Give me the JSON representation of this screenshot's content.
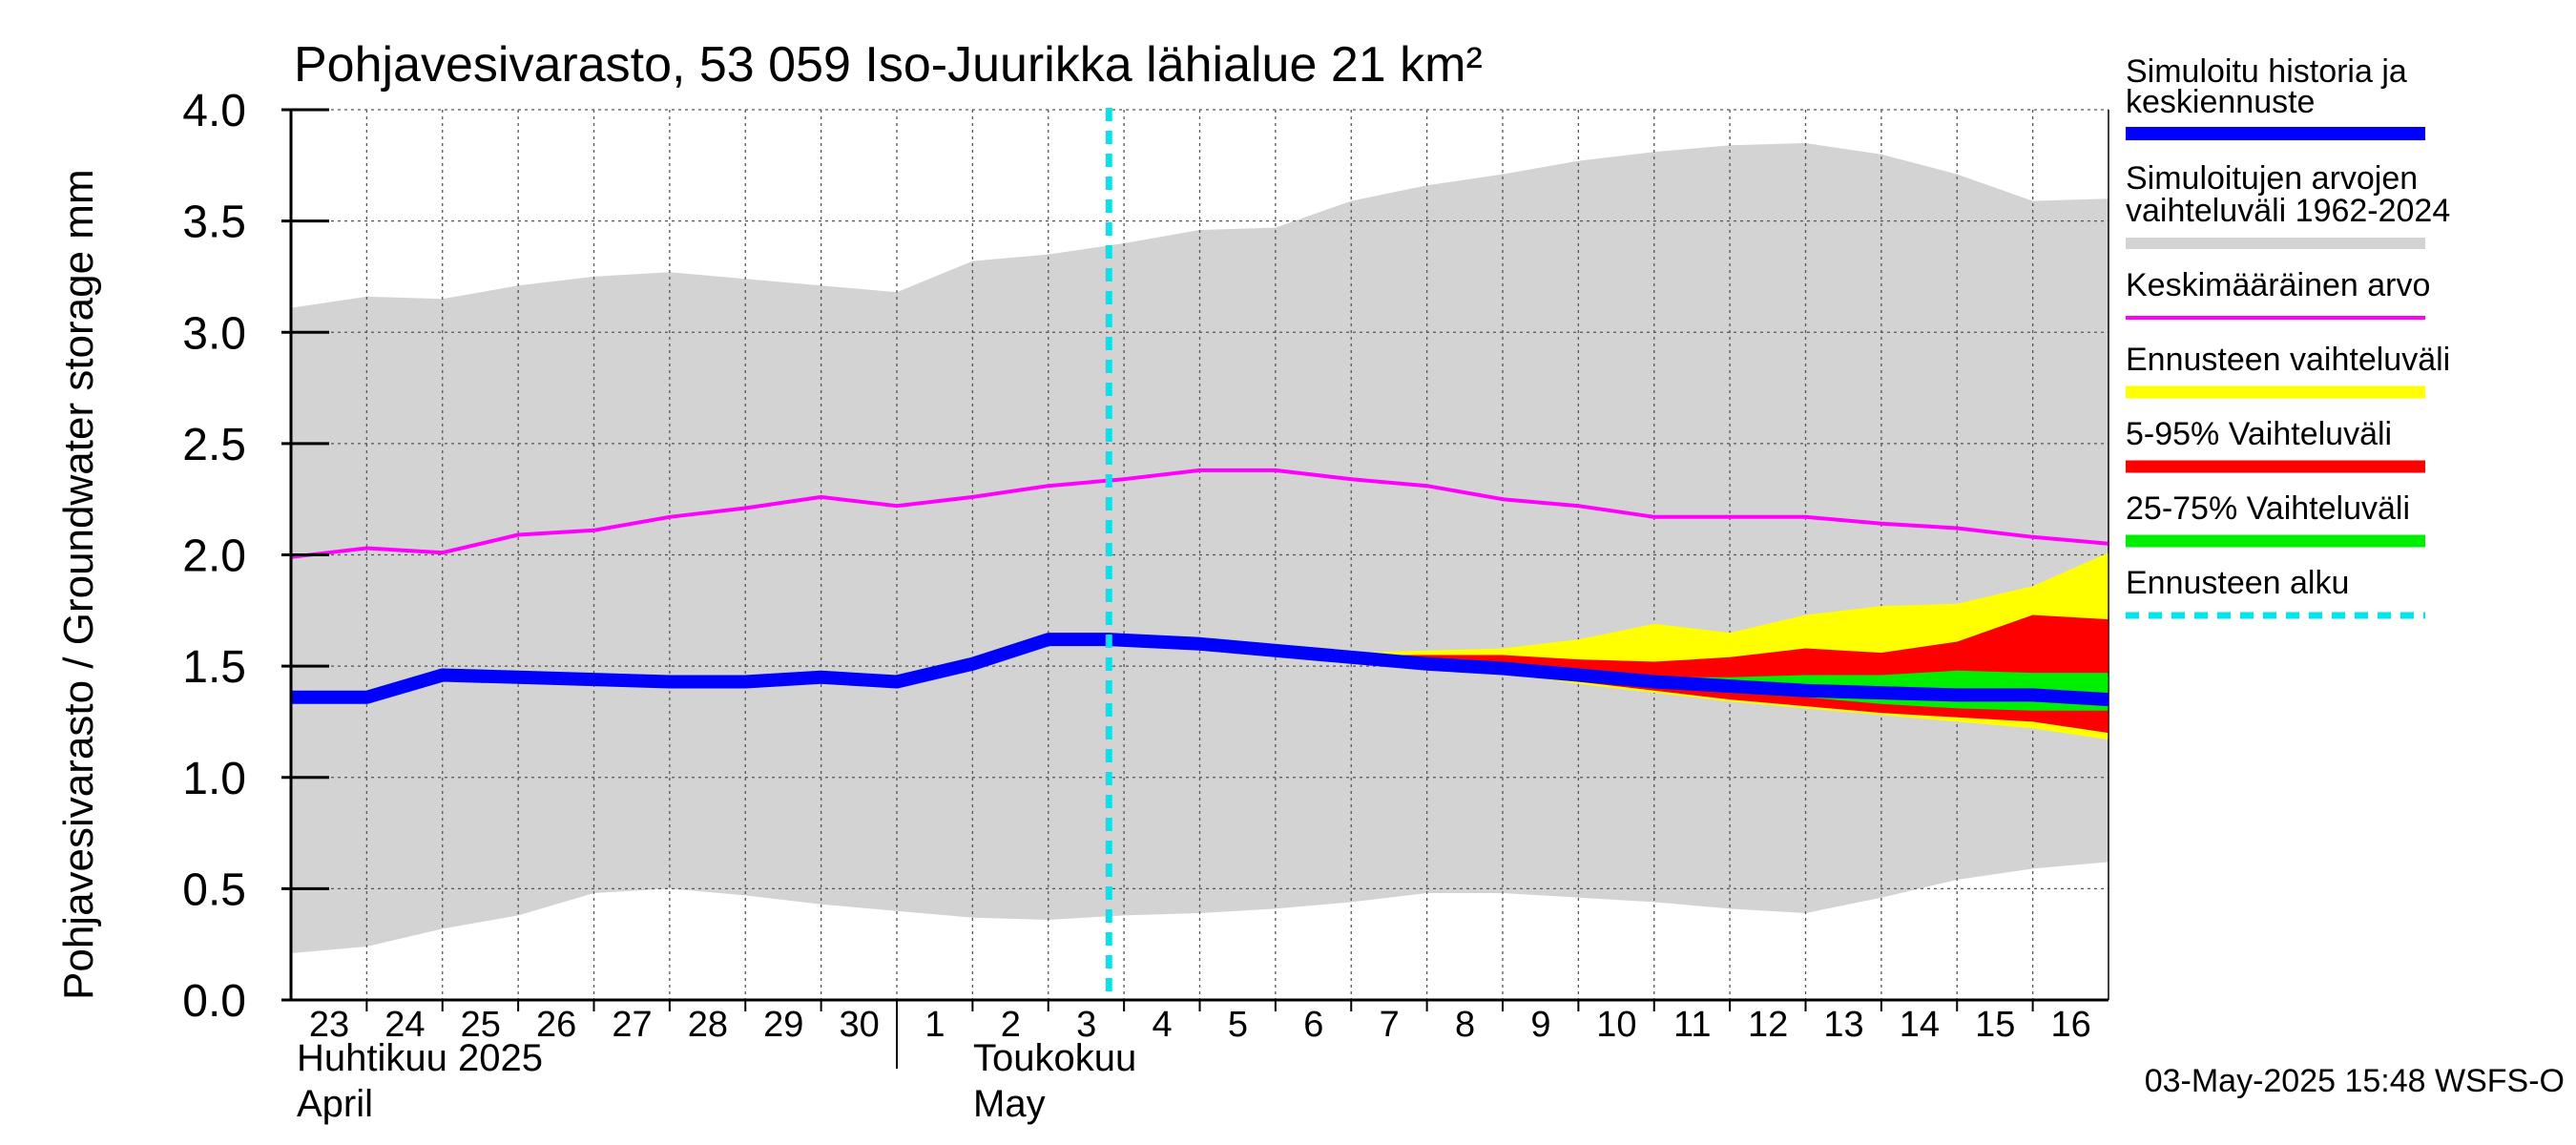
{
  "chart_data": {
    "type": "area",
    "title": "Pohjavesivarasto, 53 059 Iso-Juurikka lähialue 21 km²",
    "ylabel": "Pohjavesivarasto / Groundwater storage   mm",
    "ylim": [
      0,
      4.0
    ],
    "yticks": [
      "0.0",
      "0.5",
      "1.0",
      "1.5",
      "2.0",
      "2.5",
      "3.0",
      "3.5",
      "4.0"
    ],
    "x_day_labels": [
      "23",
      "24",
      "25",
      "26",
      "27",
      "28",
      "29",
      "30",
      "1",
      "2",
      "3",
      "4",
      "5",
      "6",
      "7",
      "8",
      "9",
      "10",
      "11",
      "12",
      "13",
      "14",
      "15",
      "16"
    ],
    "month_labels": [
      {
        "line1": "Huhtikuu  2025",
        "line2": "April"
      },
      {
        "line1": "Toukokuu",
        "line2": "May"
      }
    ],
    "forecast_start_day": 10.8,
    "legend": [
      {
        "label": "Simuloitu historia ja keskiennuste",
        "color": "#0000ff"
      },
      {
        "label": "Simuloitujen arvojen vaihteluväli 1962-2024",
        "color": "#d3d3d3"
      },
      {
        "label": "Keskimääräinen arvo",
        "color": "#ff00ff"
      },
      {
        "label": "Ennusteen vaihteluväli",
        "color": "#ffff00"
      },
      {
        "label": "5-95% Vaihteluväli",
        "color": "#ff0000"
      },
      {
        "label": "25-75% Vaihteluväli",
        "color": "#00ee00"
      },
      {
        "label": "Ennusteen alku",
        "color": "#00e5ee"
      }
    ],
    "footer": "03-May-2025 15:48 WSFS-O",
    "series": {
      "range_hist": {
        "x": [
          0,
          1,
          2,
          3,
          4,
          5,
          6,
          7,
          8,
          9,
          10,
          11,
          12,
          13,
          14,
          15,
          16,
          17,
          18,
          19,
          20,
          21,
          22,
          23,
          24
        ],
        "upper": [
          3.11,
          3.16,
          3.15,
          3.21,
          3.25,
          3.27,
          3.24,
          3.21,
          3.18,
          3.32,
          3.35,
          3.4,
          3.46,
          3.47,
          3.59,
          3.66,
          3.71,
          3.77,
          3.81,
          3.84,
          3.85,
          3.8,
          3.71,
          3.59,
          3.6
        ],
        "lower": [
          0.21,
          0.24,
          0.32,
          0.38,
          0.48,
          0.5,
          0.47,
          0.43,
          0.4,
          0.37,
          0.36,
          0.38,
          0.39,
          0.41,
          0.44,
          0.48,
          0.48,
          0.46,
          0.44,
          0.41,
          0.39,
          0.46,
          0.54,
          0.59,
          0.62
        ]
      },
      "mean": {
        "x": [
          0,
          1,
          2,
          3,
          4,
          5,
          6,
          7,
          8,
          9,
          10,
          11,
          12,
          13,
          14,
          15,
          16,
          17,
          18,
          19,
          20,
          21,
          22,
          23,
          24
        ],
        "values": [
          1.99,
          2.03,
          2.01,
          2.09,
          2.11,
          2.17,
          2.21,
          2.26,
          2.22,
          2.26,
          2.31,
          2.34,
          2.38,
          2.38,
          2.34,
          2.31,
          2.25,
          2.22,
          2.17,
          2.17,
          2.17,
          2.14,
          2.12,
          2.08,
          2.05
        ]
      },
      "sim_mean": {
        "x": [
          0,
          1,
          2,
          3,
          4,
          5,
          6,
          7,
          8,
          9,
          10,
          10.8,
          12,
          13,
          14,
          15,
          16,
          17,
          18,
          19,
          20,
          21,
          22,
          23,
          24
        ],
        "values": [
          1.36,
          1.36,
          1.46,
          1.45,
          1.44,
          1.43,
          1.43,
          1.45,
          1.43,
          1.51,
          1.62,
          1.62,
          1.6,
          1.57,
          1.54,
          1.51,
          1.49,
          1.46,
          1.43,
          1.41,
          1.39,
          1.38,
          1.37,
          1.37,
          1.35
        ]
      },
      "forecast_range": {
        "x": [
          12,
          13,
          14,
          15,
          16,
          17,
          18,
          19,
          20,
          21,
          22,
          23,
          24
        ],
        "upper": [
          1.6,
          1.58,
          1.56,
          1.57,
          1.58,
          1.62,
          1.69,
          1.65,
          1.73,
          1.77,
          1.78,
          1.86,
          2.01
        ],
        "lower": [
          1.6,
          1.57,
          1.53,
          1.5,
          1.47,
          1.42,
          1.38,
          1.34,
          1.31,
          1.28,
          1.25,
          1.22,
          1.17
        ]
      },
      "p5_95": {
        "x": [
          12,
          13,
          14,
          15,
          16,
          17,
          18,
          19,
          20,
          21,
          22,
          23,
          24
        ],
        "upper": [
          1.6,
          1.58,
          1.55,
          1.55,
          1.55,
          1.53,
          1.52,
          1.54,
          1.58,
          1.56,
          1.61,
          1.73,
          1.71
        ],
        "lower": [
          1.6,
          1.57,
          1.54,
          1.51,
          1.48,
          1.43,
          1.39,
          1.35,
          1.32,
          1.29,
          1.27,
          1.25,
          1.2
        ]
      },
      "p25_75": {
        "x": [
          12,
          13,
          14,
          15,
          16,
          17,
          18,
          19,
          20,
          21,
          22,
          23,
          24
        ],
        "upper": [
          1.6,
          1.58,
          1.54,
          1.52,
          1.5,
          1.47,
          1.45,
          1.45,
          1.46,
          1.46,
          1.48,
          1.47,
          1.47
        ],
        "lower": [
          1.6,
          1.57,
          1.54,
          1.51,
          1.49,
          1.45,
          1.41,
          1.38,
          1.36,
          1.33,
          1.31,
          1.3,
          1.3
        ]
      }
    }
  }
}
